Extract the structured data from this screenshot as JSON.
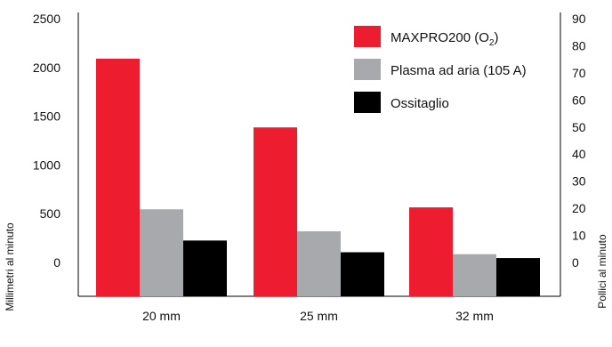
{
  "chart_data": {
    "type": "bar",
    "categories": [
      "20 mm",
      "25 mm",
      "32 mm"
    ],
    "series": [
      {
        "name": "MAXPRO200 (O₂)",
        "color": "#ed1c2e",
        "values": [
          2090,
          1385,
          565
        ]
      },
      {
        "name": "Plasma ad aria (105 A)",
        "color": "#a7a9ac",
        "values": [
          545,
          320,
          85
        ]
      },
      {
        "name": "Ossitaglio",
        "color": "#000000",
        "values": [
          225,
          105,
          45
        ]
      }
    ],
    "ylabel": "Millimetri al minuto",
    "ylabel_right": "Pollici al minuto",
    "ylim": [
      -320,
      2500
    ],
    "yticks": [
      0,
      500,
      1000,
      1500,
      2000,
      2500
    ],
    "yticks_right": [
      0,
      10,
      20,
      30,
      40,
      50,
      60,
      70,
      80,
      90
    ],
    "legend": "top-right",
    "grid": false
  }
}
